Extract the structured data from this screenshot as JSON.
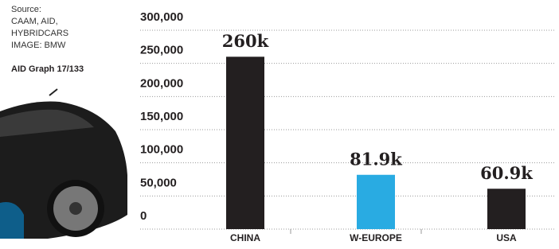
{
  "chart_data": {
    "type": "bar",
    "source": [
      "Source:",
      "CAAM, AID,",
      "HYBRIDCARS",
      "IMAGE: BMW"
    ],
    "note": "AID Graph 17/133",
    "categories": [
      "CHINA",
      "W-EUROPE",
      "USA"
    ],
    "values": [
      260000,
      81900,
      60900
    ],
    "value_labels": [
      "260k",
      "81.9k",
      "60.9k"
    ],
    "colors": [
      "#231f20",
      "#29abe2",
      "#231f20"
    ],
    "ylim": [
      0,
      300000
    ],
    "yticks": [
      0,
      {
        "value": 50000,
        "label": "50,000"
      },
      {
        "value": 100000,
        "label": "100,000"
      },
      {
        "value": 150000,
        "label": "150,000"
      },
      {
        "value": 200000,
        "label": "200,000"
      },
      {
        "value": 250000,
        "label": "250,000"
      },
      {
        "value": 300000,
        "label": "300,000"
      }
    ],
    "grid": true
  }
}
